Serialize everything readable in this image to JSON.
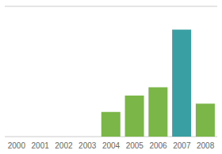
{
  "chart_data": {
    "type": "bar",
    "categories": [
      "2000",
      "2001",
      "2002",
      "2003",
      "2004",
      "2005",
      "2006",
      "2007",
      "2008"
    ],
    "values": [
      0,
      0,
      0,
      0,
      18,
      30,
      36,
      78,
      24
    ],
    "colors": [
      "#7ab648",
      "#7ab648",
      "#7ab648",
      "#7ab648",
      "#7ab648",
      "#7ab648",
      "#7ab648",
      "#3a9fa3",
      "#7ab648"
    ],
    "ylim": [
      0,
      95
    ],
    "yticks": [
      0,
      19,
      38,
      57,
      76,
      95
    ],
    "grid": true,
    "tick_labels": "x"
  }
}
